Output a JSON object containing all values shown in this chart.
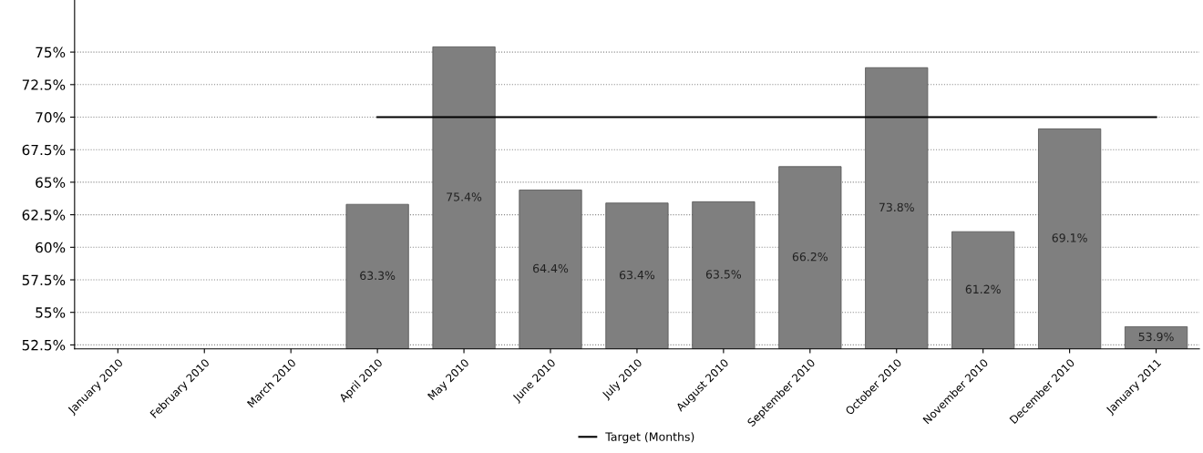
{
  "chart_data": {
    "type": "bar",
    "categories": [
      "January 2010",
      "February 2010",
      "March 2010",
      "April 2010",
      "May 2010",
      "June 2010",
      "July 2010",
      "August 2010",
      "September 2010",
      "October 2010",
      "November 2010",
      "December 2010",
      "January 2011"
    ],
    "series": [
      {
        "color": "#7f7f7f",
        "values": [
          null,
          null,
          null,
          63.3,
          75.4,
          64.4,
          63.4,
          63.5,
          66.2,
          73.8,
          61.2,
          69.1,
          53.9
        ],
        "value_labels": [
          null,
          null,
          null,
          "63.3%",
          "75.4%",
          "64.4%",
          "63.4%",
          "63.5%",
          "66.2%",
          "73.8%",
          "61.2%",
          "69.1%",
          "53.9%"
        ]
      },
      {
        "type": "line",
        "name": "Target (Months)",
        "color": "#000000",
        "values": [
          null,
          null,
          null,
          70,
          70,
          70,
          70,
          70,
          70,
          70,
          70,
          70,
          70
        ]
      }
    ],
    "ylim": [
      52.2,
      79
    ],
    "yticks": [
      {
        "value": 52.5,
        "label": "52.5%"
      },
      {
        "value": 55,
        "label": "55%"
      },
      {
        "value": 57.5,
        "label": "57.5%"
      },
      {
        "value": 60,
        "label": "60%"
      },
      {
        "value": 62.5,
        "label": "62.5%"
      },
      {
        "value": 65,
        "label": "65%"
      },
      {
        "value": 67.5,
        "label": "67.5%"
      },
      {
        "value": 70,
        "label": "70%"
      },
      {
        "value": 72.5,
        "label": "72.5%"
      },
      {
        "value": 75,
        "label": "75%"
      }
    ],
    "grid": "y",
    "legend": "bottom",
    "marker": "none",
    "line_style": "solid"
  }
}
